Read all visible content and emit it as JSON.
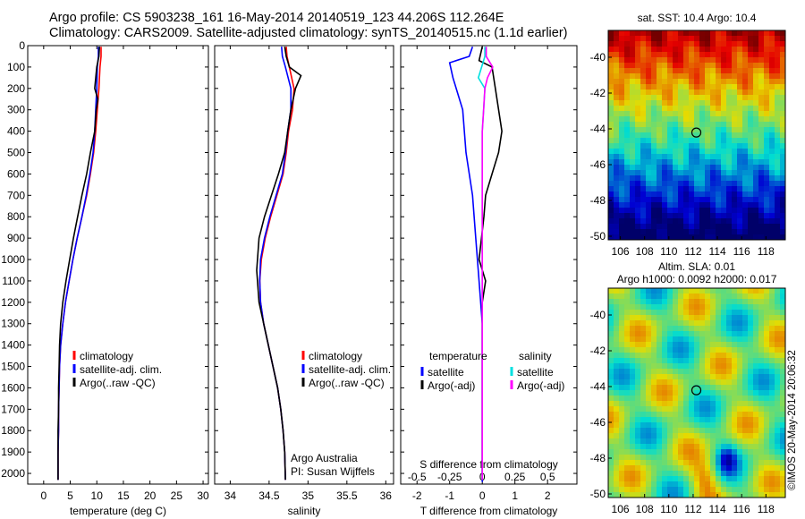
{
  "header": {
    "line1": "Argo profile: CS 5903238_161 16-May-2014 20140519_123 44.206S 112.264E",
    "line2": "Climatology: CARS2009. Satellite-adjusted climatology: synTS_20140515.nc (1.1d earlier)"
  },
  "stamp": "©IMOS 20-May-2014 20:06:32",
  "colors": {
    "climatology": "#ff0000",
    "satellite": "#0000ff",
    "argo": "#000000",
    "satellite_salinity": "#00e0e0",
    "argo_salinity": "#ff00ff"
  },
  "chart_data": [
    {
      "type": "line",
      "panel": "temperature",
      "xlabel": "temperature (deg C)",
      "x_ticks": [
        "0",
        "5",
        "10",
        "15",
        "20",
        "25",
        "30"
      ],
      "xlim": [
        -3,
        31
      ],
      "y_ticks": [
        "0",
        "100",
        "200",
        "300",
        "400",
        "500",
        "600",
        "700",
        "800",
        "900",
        "1000",
        "1100",
        "1200",
        "1300",
        "1400",
        "1500",
        "1600",
        "1700",
        "1800",
        "1900",
        "2000"
      ],
      "ylim": [
        2050,
        0
      ],
      "y_reversed": true,
      "legend": [
        "climatology",
        "satellite-adj. clim.",
        "Argo(..raw -QC)"
      ],
      "series": [
        {
          "name": "climatology",
          "color": "#ff0000",
          "x": [
            10.8,
            10.8,
            10.6,
            10.4,
            10.1,
            9.8,
            9.4,
            8.8,
            8.1,
            7.2,
            6.3,
            5.5,
            4.8,
            4.1,
            3.6,
            3.2,
            3.0,
            2.9,
            2.8,
            2.8,
            2.7,
            2.7
          ],
          "y": [
            5,
            50,
            100,
            200,
            300,
            400,
            500,
            600,
            700,
            800,
            900,
            1000,
            1100,
            1200,
            1300,
            1400,
            1500,
            1600,
            1700,
            1800,
            1900,
            2030
          ]
        },
        {
          "name": "satellite-adj. clim.",
          "color": "#0000ff",
          "x": [
            10.3,
            10.3,
            10.1,
            10.0,
            9.8,
            9.6,
            9.3,
            8.7,
            8.0,
            7.2,
            6.3,
            5.5,
            4.8,
            4.1,
            3.6,
            3.2,
            3.0,
            2.9,
            2.8,
            2.8,
            2.7,
            2.7
          ],
          "y": [
            5,
            50,
            100,
            200,
            300,
            400,
            500,
            600,
            700,
            800,
            900,
            1000,
            1100,
            1200,
            1300,
            1400,
            1500,
            1600,
            1700,
            1800,
            1900,
            2030
          ]
        },
        {
          "name": "Argo(..raw -QC)",
          "color": "#000000",
          "x": [
            10.5,
            10.4,
            10.0,
            9.6,
            10.2,
            9.9,
            9.6,
            8.8,
            8.1,
            7.2,
            6.4,
            5.6,
            4.9,
            4.2,
            3.6,
            3.2,
            3.0,
            2.9,
            2.8,
            2.8,
            2.7,
            2.7
          ],
          "y": [
            5,
            50,
            100,
            200,
            250,
            300,
            400,
            500,
            600,
            700,
            800,
            900,
            1000,
            1100,
            1200,
            1300,
            1400,
            1500,
            1600,
            1700,
            1800,
            2030
          ]
        }
      ]
    },
    {
      "type": "line",
      "panel": "salinity",
      "xlabel": "salinity",
      "x_ticks": [
        "34",
        "34.5",
        "35",
        "35.5",
        "36"
      ],
      "xlim": [
        33.8,
        36.1
      ],
      "ylim": [
        2050,
        0
      ],
      "y_reversed": true,
      "legend": [
        "climatology",
        "satellite-adj. clim.",
        "Argo(..raw -QC)"
      ],
      "annotation": [
        "Argo Australia",
        "PI: Susan Wijffels"
      ],
      "series": [
        {
          "name": "climatology",
          "color": "#ff0000",
          "x": [
            34.72,
            34.73,
            34.76,
            34.82,
            34.8,
            34.75,
            34.72,
            34.68,
            34.6,
            34.52,
            34.45,
            34.4,
            34.38,
            34.39,
            34.43,
            34.49,
            34.55,
            34.61,
            34.65,
            34.68,
            34.7,
            34.71
          ],
          "y": [
            5,
            50,
            100,
            200,
            300,
            400,
            500,
            600,
            700,
            800,
            900,
            1000,
            1100,
            1200,
            1300,
            1400,
            1500,
            1600,
            1700,
            1800,
            1900,
            2030
          ]
        },
        {
          "name": "satellite-adj. clim.",
          "color": "#0000ff",
          "x": [
            34.66,
            34.67,
            34.71,
            34.78,
            34.78,
            34.74,
            34.71,
            34.67,
            34.59,
            34.51,
            34.44,
            34.39,
            34.38,
            34.39,
            34.43,
            34.49,
            34.55,
            34.61,
            34.65,
            34.68,
            34.7,
            34.71
          ],
          "y": [
            5,
            50,
            100,
            200,
            300,
            400,
            500,
            600,
            700,
            800,
            900,
            1000,
            1100,
            1200,
            1300,
            1400,
            1500,
            1600,
            1700,
            1800,
            1900,
            2030
          ]
        },
        {
          "name": "Argo(..raw -QC)",
          "color": "#000000",
          "x": [
            34.7,
            34.72,
            34.76,
            34.91,
            34.84,
            34.78,
            34.74,
            34.7,
            34.62,
            34.53,
            34.44,
            34.37,
            34.34,
            34.37,
            34.43,
            34.49,
            34.55,
            34.61,
            34.65,
            34.68,
            34.7,
            34.71
          ],
          "y": [
            5,
            50,
            100,
            140,
            200,
            300,
            400,
            500,
            600,
            700,
            800,
            900,
            1050,
            1200,
            1300,
            1400,
            1500,
            1600,
            1700,
            1800,
            1900,
            2030
          ]
        }
      ]
    },
    {
      "type": "line",
      "panel": "difference",
      "xlabel": "T difference from climatology",
      "x_ticks": [
        "-2",
        "-1",
        "0",
        "1",
        "2"
      ],
      "xlim": [
        -2.5,
        2.9
      ],
      "x2label": "S difference from climatology",
      "x2_ticks": [
        "-0.5",
        "-0.25",
        "0",
        "0.25",
        "0.5"
      ],
      "x2lim": [
        -0.625,
        0.725
      ],
      "ylim": [
        2050,
        0
      ],
      "y_reversed": true,
      "legend_groups": [
        {
          "heading": "temperature",
          "items": [
            "satellite",
            "Argo(-adj)"
          ]
        },
        {
          "heading": "salinity",
          "items": [
            "satellite",
            "Argo(-adj)"
          ]
        }
      ],
      "series": [
        {
          "name": "temperature satellite",
          "color": "#0000ff",
          "x": [
            -0.3,
            -0.4,
            -1.0,
            -0.9,
            -0.6,
            -0.5,
            -0.3,
            -0.2,
            -0.1,
            0,
            0,
            0,
            0,
            0,
            0,
            0,
            0,
            0
          ],
          "y": [
            5,
            50,
            80,
            150,
            300,
            500,
            700,
            900,
            1100,
            1300,
            1500,
            1600,
            1700,
            1800,
            1900,
            2000,
            2030,
            2040
          ]
        },
        {
          "name": "temperature Argo(-adj)",
          "color": "#000000",
          "x": [
            0,
            -0.1,
            0.3,
            0.4,
            0.6,
            0.5,
            0.3,
            0.1,
            0.05,
            -0.1,
            0.1,
            0,
            0,
            0,
            0,
            0,
            0
          ],
          "y": [
            5,
            70,
            100,
            200,
            400,
            500,
            600,
            700,
            800,
            1000,
            1100,
            1200,
            1400,
            1600,
            1800,
            2000,
            2030
          ]
        },
        {
          "name": "salinity satellite",
          "color": "#00e0e0",
          "x": [
            0.02,
            0.02,
            -0.03,
            0.02,
            0.01,
            0,
            0,
            0,
            0,
            0,
            0,
            0,
            0,
            0
          ],
          "y": [
            5,
            50,
            150,
            200,
            300,
            400,
            600,
            800,
            1000,
            1200,
            1400,
            1600,
            1800,
            2030
          ]
        },
        {
          "name": "salinity Argo(-adj)",
          "color": "#ff00ff",
          "x": [
            0.03,
            0.03,
            0.08,
            0.04,
            0.02,
            0.01,
            0,
            0,
            0,
            0,
            0,
            0,
            0,
            0
          ],
          "y": [
            5,
            50,
            100,
            150,
            200,
            300,
            400,
            600,
            800,
            1000,
            1200,
            1500,
            1800,
            2030
          ]
        }
      ]
    },
    {
      "type": "heatmap",
      "panel": "sst-map",
      "title": "sat. SST: 10.4  Argo: 10.4",
      "x_ticks": [
        "106",
        "108",
        "110",
        "112",
        "114",
        "116",
        "118"
      ],
      "y_ticks": [
        "-40",
        "-42",
        "-44",
        "-46",
        "-48",
        "-50"
      ],
      "xlim": [
        105,
        119.6
      ],
      "ylim": [
        -50.2,
        -38.5
      ],
      "profile_marker": {
        "lon": 112.264,
        "lat": -44.206
      }
    },
    {
      "type": "heatmap",
      "panel": "sla-map",
      "title": "Altim. SLA: 0.01",
      "subtitle": "Argo h1000: 0.0092  h2000: 0.017",
      "x_ticks": [
        "106",
        "108",
        "110",
        "112",
        "114",
        "116",
        "118"
      ],
      "y_ticks": [
        "-40",
        "-42",
        "-44",
        "-46",
        "-48",
        "-50"
      ],
      "xlim": [
        105,
        119.6
      ],
      "ylim": [
        -50.2,
        -38.5
      ],
      "profile_marker": {
        "lon": 112.264,
        "lat": -44.206
      }
    }
  ]
}
